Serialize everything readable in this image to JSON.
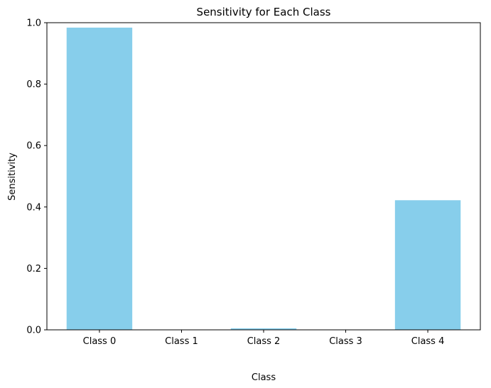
{
  "chart_data": {
    "type": "bar",
    "title": "Sensitivity for Each Class",
    "xlabel": "Class",
    "ylabel": "Sensitivity",
    "categories": [
      "Class 0",
      "Class 1",
      "Class 2",
      "Class 3",
      "Class 4"
    ],
    "values": [
      0.984,
      0.0,
      0.005,
      0.0,
      0.422
    ],
    "ylim": [
      0,
      1.0
    ],
    "yticks": [
      "0.0",
      "0.2",
      "0.4",
      "0.6",
      "0.8",
      "1.0"
    ],
    "grid": false,
    "bar_color": "#87CEEB"
  }
}
